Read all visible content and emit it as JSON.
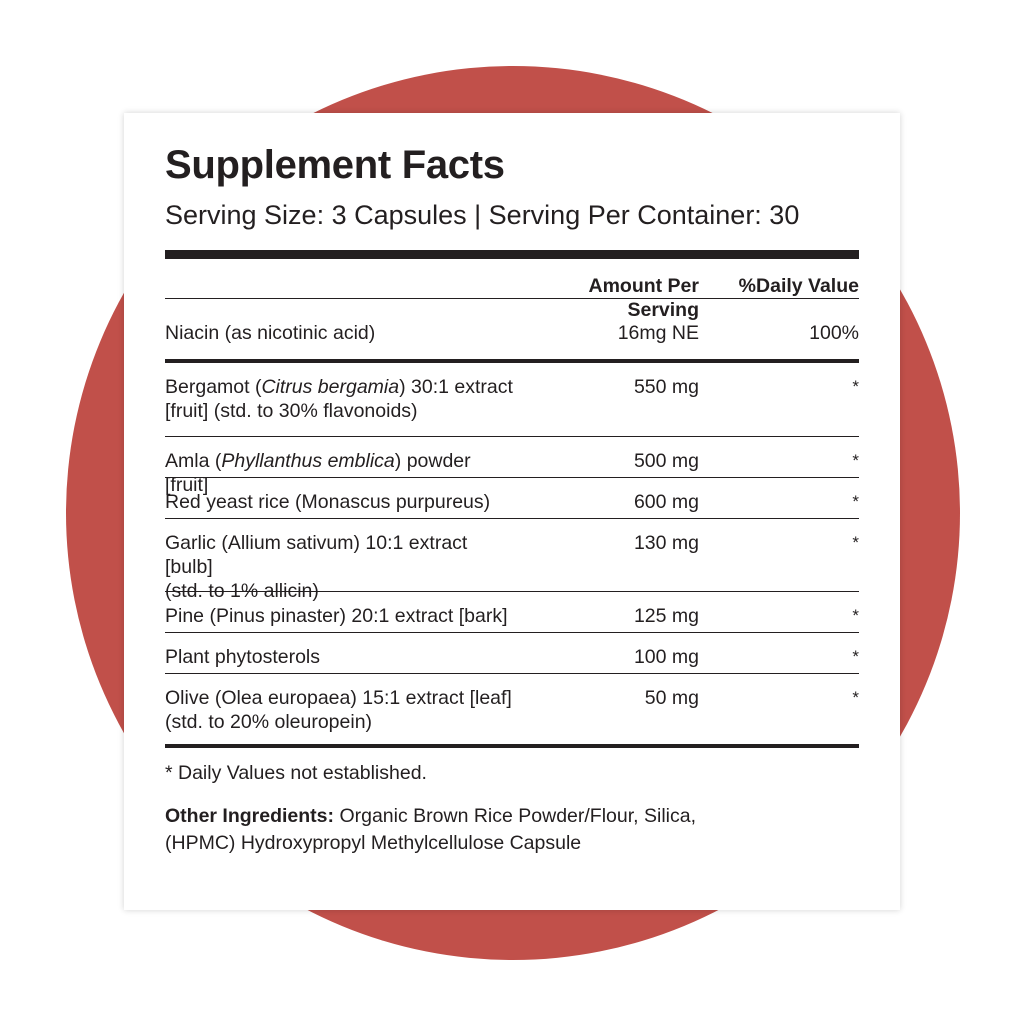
{
  "title": "Supplement Facts",
  "serving": "Serving Size: 3 Capsules | Serving Per Container: 30",
  "header": {
    "amount": "Amount Per Serving",
    "daily_value": "%Daily Value"
  },
  "niacin": {
    "name": "Niacin (as nicotinic acid)",
    "amount": "16mg NE",
    "dv": "100%"
  },
  "ingredients": [
    {
      "pre": "Bergamot (",
      "italic": "Citrus bergamia",
      "post": ") 30:1 extract",
      "line2": "[fruit] (std. to 30% flavonoids)",
      "amount": "550 mg",
      "dv": "*"
    },
    {
      "pre": "Amla (",
      "italic": "Phyllanthus emblica",
      "post": ") powder [fruit]",
      "amount": "500 mg",
      "dv": "*"
    },
    {
      "text": "Red yeast rice (Monascus purpureus)",
      "amount": "600 mg",
      "dv": "*"
    },
    {
      "text": "Garlic (Allium sativum) 10:1 extract [bulb]",
      "line2": "(std. to 1% allicin)",
      "amount": "130 mg",
      "dv": "*"
    },
    {
      "text": "Pine (Pinus pinaster) 20:1 extract [bark]",
      "amount": "125 mg",
      "dv": "*"
    },
    {
      "text": "Plant phytosterols",
      "amount": "100 mg",
      "dv": "*"
    },
    {
      "text": "Olive (Olea europaea) 15:1 extract  [leaf]",
      "line2": "(std. to 20% oleuropein)",
      "amount": "50 mg",
      "dv": "*"
    }
  ],
  "footnote": "* Daily Values not established.",
  "other": {
    "label": "Other Ingredients:",
    "text": " Organic Brown Rice Powder/Flour, Silica,",
    "text2": "(HPMC) Hydroxypropyl Methylcellulose Capsule"
  },
  "colors": {
    "accent_circle": "#c1504a",
    "text": "#231f20"
  }
}
